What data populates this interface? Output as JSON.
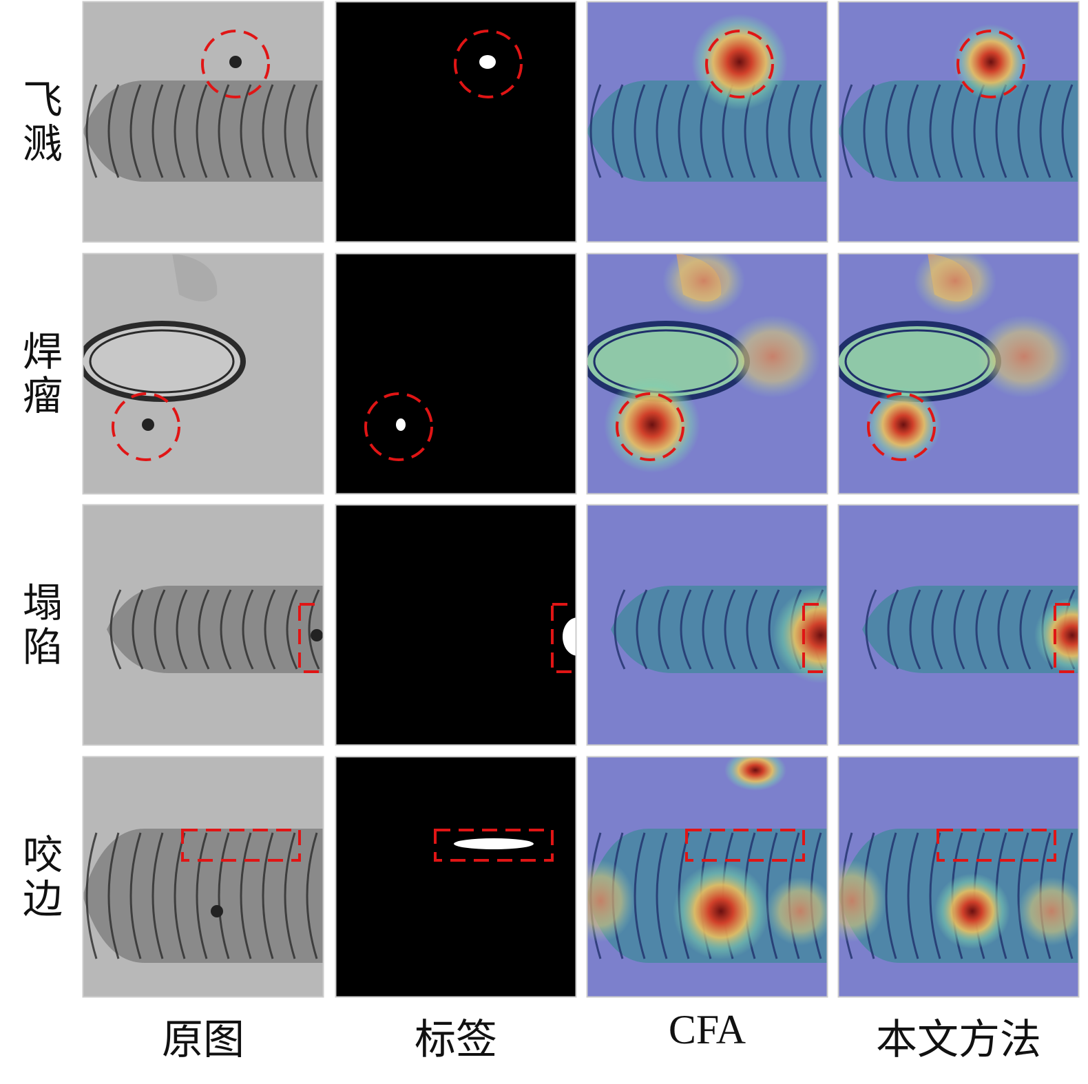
{
  "row_labels": [
    "飞溅",
    "焊瘤",
    "塌陷",
    "咬边"
  ],
  "column_labels": [
    "原图",
    "标签",
    "CFA",
    "本文方法"
  ]
}
